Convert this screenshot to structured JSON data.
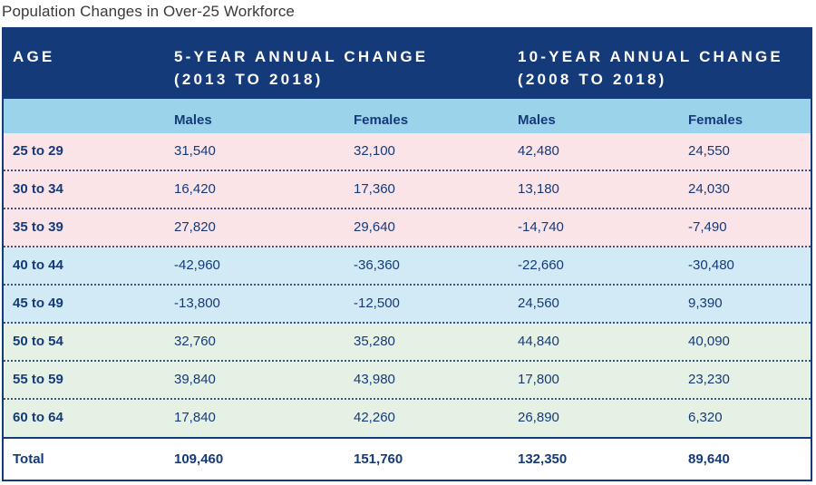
{
  "title": "Population Changes in Over-25 Workforce",
  "header": {
    "age": "AGE",
    "group1_line1": "5-YEAR ANNUAL CHANGE",
    "group1_line2": "(2013 TO 2018)",
    "group2_line1": "10-YEAR ANNUAL CHANGE",
    "group2_line2": "(2008 TO 2018)"
  },
  "subheader": [
    "Males",
    "Females",
    "Males",
    "Females"
  ],
  "rows": [
    {
      "age": "25 to 29",
      "values": [
        "31,540",
        "32,100",
        "42,480",
        "24,550"
      ]
    },
    {
      "age": "30 to 34",
      "values": [
        "16,420",
        "17,360",
        "13,180",
        "24,030"
      ]
    },
    {
      "age": "35 to 39",
      "values": [
        "27,820",
        "29,640",
        "-14,740",
        "-7,490"
      ]
    },
    {
      "age": "40 to 44",
      "values": [
        "-42,960",
        "-36,360",
        "-22,660",
        "-30,480"
      ]
    },
    {
      "age": "45 to 49",
      "values": [
        "-13,800",
        "-12,500",
        "24,560",
        "9,390"
      ]
    },
    {
      "age": "50 to 54",
      "values": [
        "32,760",
        "35,280",
        "44,840",
        "40,090"
      ]
    },
    {
      "age": "55 to 59",
      "values": [
        "39,840",
        "43,980",
        "17,800",
        "23,230"
      ]
    },
    {
      "age": "60 to 64",
      "values": [
        "17,840",
        "42,260",
        "26,890",
        "6,320"
      ]
    }
  ],
  "total": {
    "label": "Total",
    "values": [
      "109,460",
      "151,760",
      "132,350",
      "89,640"
    ]
  },
  "colors": {
    "navy": "#153a7a",
    "light_blue": "#9bd4ea",
    "pink": "#fbe4e8",
    "pale_blue": "#d2eaf5",
    "pale_green": "#e6f1e5"
  }
}
